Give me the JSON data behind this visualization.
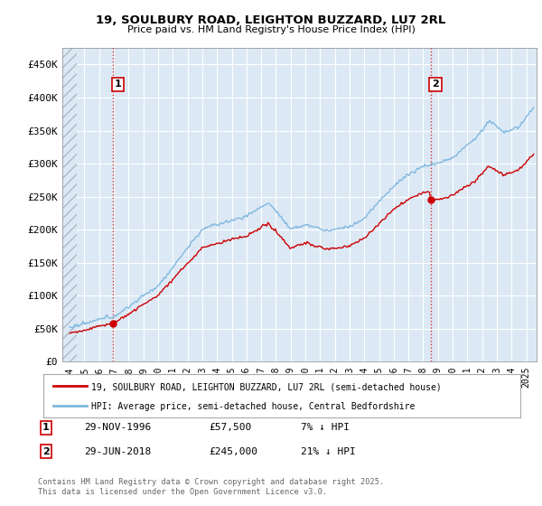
{
  "title1": "19, SOULBURY ROAD, LEIGHTON BUZZARD, LU7 2RL",
  "title2": "Price paid vs. HM Land Registry's House Price Index (HPI)",
  "ylabel_ticks": [
    "£0",
    "£50K",
    "£100K",
    "£150K",
    "£200K",
    "£250K",
    "£300K",
    "£350K",
    "£400K",
    "£450K"
  ],
  "ytick_vals": [
    0,
    50000,
    100000,
    150000,
    200000,
    250000,
    300000,
    350000,
    400000,
    450000
  ],
  "ylim": [
    0,
    475000
  ],
  "xlim_start": 1993.5,
  "xlim_end": 2025.7,
  "background_color": "#ffffff",
  "plot_bg_color": "#dce9f5",
  "hatch_color": "#b0b8c8",
  "grid_color": "#ffffff",
  "hpi_color": "#7fb8e0",
  "price_color": "#cc0000",
  "t_ref1": 1996.92,
  "y_ref1": 57500,
  "t_ref2": 2018.5,
  "y_ref2": 245000,
  "annotation1": {
    "label": "1",
    "date": "29-NOV-1996",
    "price": "£57,500",
    "note": "7% ↓ HPI"
  },
  "annotation2": {
    "label": "2",
    "date": "29-JUN-2018",
    "price": "£245,000",
    "note": "21% ↓ HPI"
  },
  "legend_line1": "19, SOULBURY ROAD, LEIGHTON BUZZARD, LU7 2RL (semi-detached house)",
  "legend_line2": "HPI: Average price, semi-detached house, Central Bedfordshire",
  "footer": "Contains HM Land Registry data © Crown copyright and database right 2025.\nThis data is licensed under the Open Government Licence v3.0.",
  "xtick_years": [
    1994,
    1995,
    1996,
    1997,
    1998,
    1999,
    2000,
    2001,
    2002,
    2003,
    2004,
    2005,
    2006,
    2007,
    2008,
    2009,
    2010,
    2011,
    2012,
    2013,
    2014,
    2015,
    2016,
    2017,
    2018,
    2019,
    2020,
    2021,
    2022,
    2023,
    2024,
    2025
  ],
  "hatch_end": 1994.5
}
